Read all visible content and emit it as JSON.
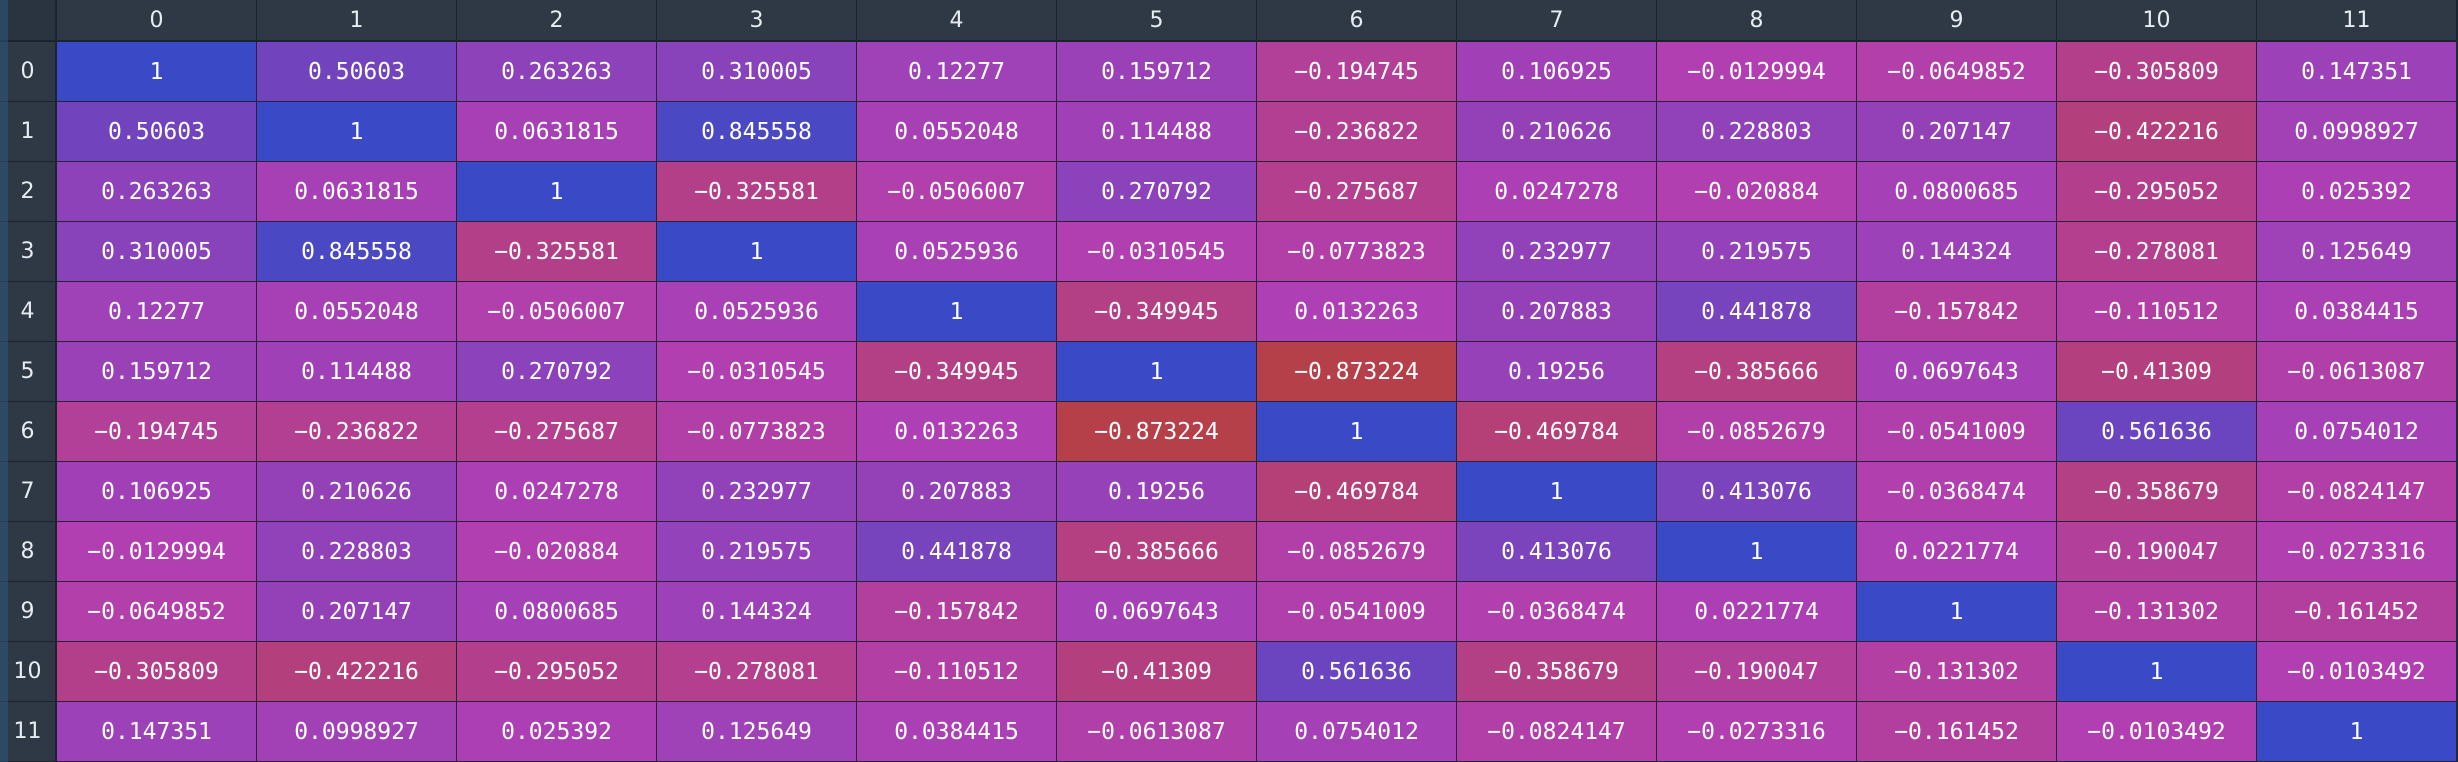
{
  "columns": [
    "0",
    "1",
    "2",
    "3",
    "4",
    "5",
    "6",
    "7",
    "8",
    "9",
    "10",
    "11"
  ],
  "rows": [
    "0",
    "1",
    "2",
    "3",
    "4",
    "5",
    "6",
    "7",
    "8",
    "9",
    "10",
    "11"
  ],
  "cells": [
    [
      "1",
      "0.50603",
      "0.263263",
      "0.310005",
      "0.12277",
      "0.159712",
      "−0.194745",
      "0.106925",
      "−0.0129994",
      "−0.0649852",
      "−0.305809",
      "0.147351"
    ],
    [
      "0.50603",
      "1",
      "0.0631815",
      "0.845558",
      "0.0552048",
      "0.114488",
      "−0.236822",
      "0.210626",
      "0.228803",
      "0.207147",
      "−0.422216",
      "0.0998927"
    ],
    [
      "0.263263",
      "0.0631815",
      "1",
      "−0.325581",
      "−0.0506007",
      "0.270792",
      "−0.275687",
      "0.0247278",
      "−0.020884",
      "0.0800685",
      "−0.295052",
      "0.025392"
    ],
    [
      "0.310005",
      "0.845558",
      "−0.325581",
      "1",
      "0.0525936",
      "−0.0310545",
      "−0.0773823",
      "0.232977",
      "0.219575",
      "0.144324",
      "−0.278081",
      "0.125649"
    ],
    [
      "0.12277",
      "0.0552048",
      "−0.0506007",
      "0.0525936",
      "1",
      "−0.349945",
      "0.0132263",
      "0.207883",
      "0.441878",
      "−0.157842",
      "−0.110512",
      "0.0384415"
    ],
    [
      "0.159712",
      "0.114488",
      "0.270792",
      "−0.0310545",
      "−0.349945",
      "1",
      "−0.873224",
      "0.19256",
      "−0.385666",
      "0.0697643",
      "−0.41309",
      "−0.0613087"
    ],
    [
      "−0.194745",
      "−0.236822",
      "−0.275687",
      "−0.0773823",
      "0.0132263",
      "−0.873224",
      "1",
      "−0.469784",
      "−0.0852679",
      "−0.0541009",
      "0.561636",
      "0.0754012"
    ],
    [
      "0.106925",
      "0.210626",
      "0.0247278",
      "0.232977",
      "0.207883",
      "0.19256",
      "−0.469784",
      "1",
      "0.413076",
      "−0.0368474",
      "−0.358679",
      "−0.0824147"
    ],
    [
      "−0.0129994",
      "0.228803",
      "−0.020884",
      "0.219575",
      "0.441878",
      "−0.385666",
      "−0.0852679",
      "0.413076",
      "1",
      "0.0221774",
      "−0.190047",
      "−0.0273316"
    ],
    [
      "−0.0649852",
      "0.207147",
      "0.0800685",
      "0.144324",
      "−0.157842",
      "0.0697643",
      "−0.0541009",
      "−0.0368474",
      "0.0221774",
      "1",
      "−0.131302",
      "−0.161452"
    ],
    [
      "−0.305809",
      "−0.422216",
      "−0.295052",
      "−0.278081",
      "−0.110512",
      "−0.41309",
      "0.561636",
      "−0.358679",
      "−0.190047",
      "−0.131302",
      "1",
      "−0.0103492"
    ],
    [
      "0.147351",
      "0.0998927",
      "0.025392",
      "0.125649",
      "0.0384415",
      "−0.0613087",
      "0.0754012",
      "−0.0824147",
      "−0.0273316",
      "−0.161452",
      "−0.0103492",
      "1"
    ]
  ],
  "colors": {
    "high": "#3a49c6",
    "mid": "#b13fb4",
    "low": "#b7403c"
  }
}
